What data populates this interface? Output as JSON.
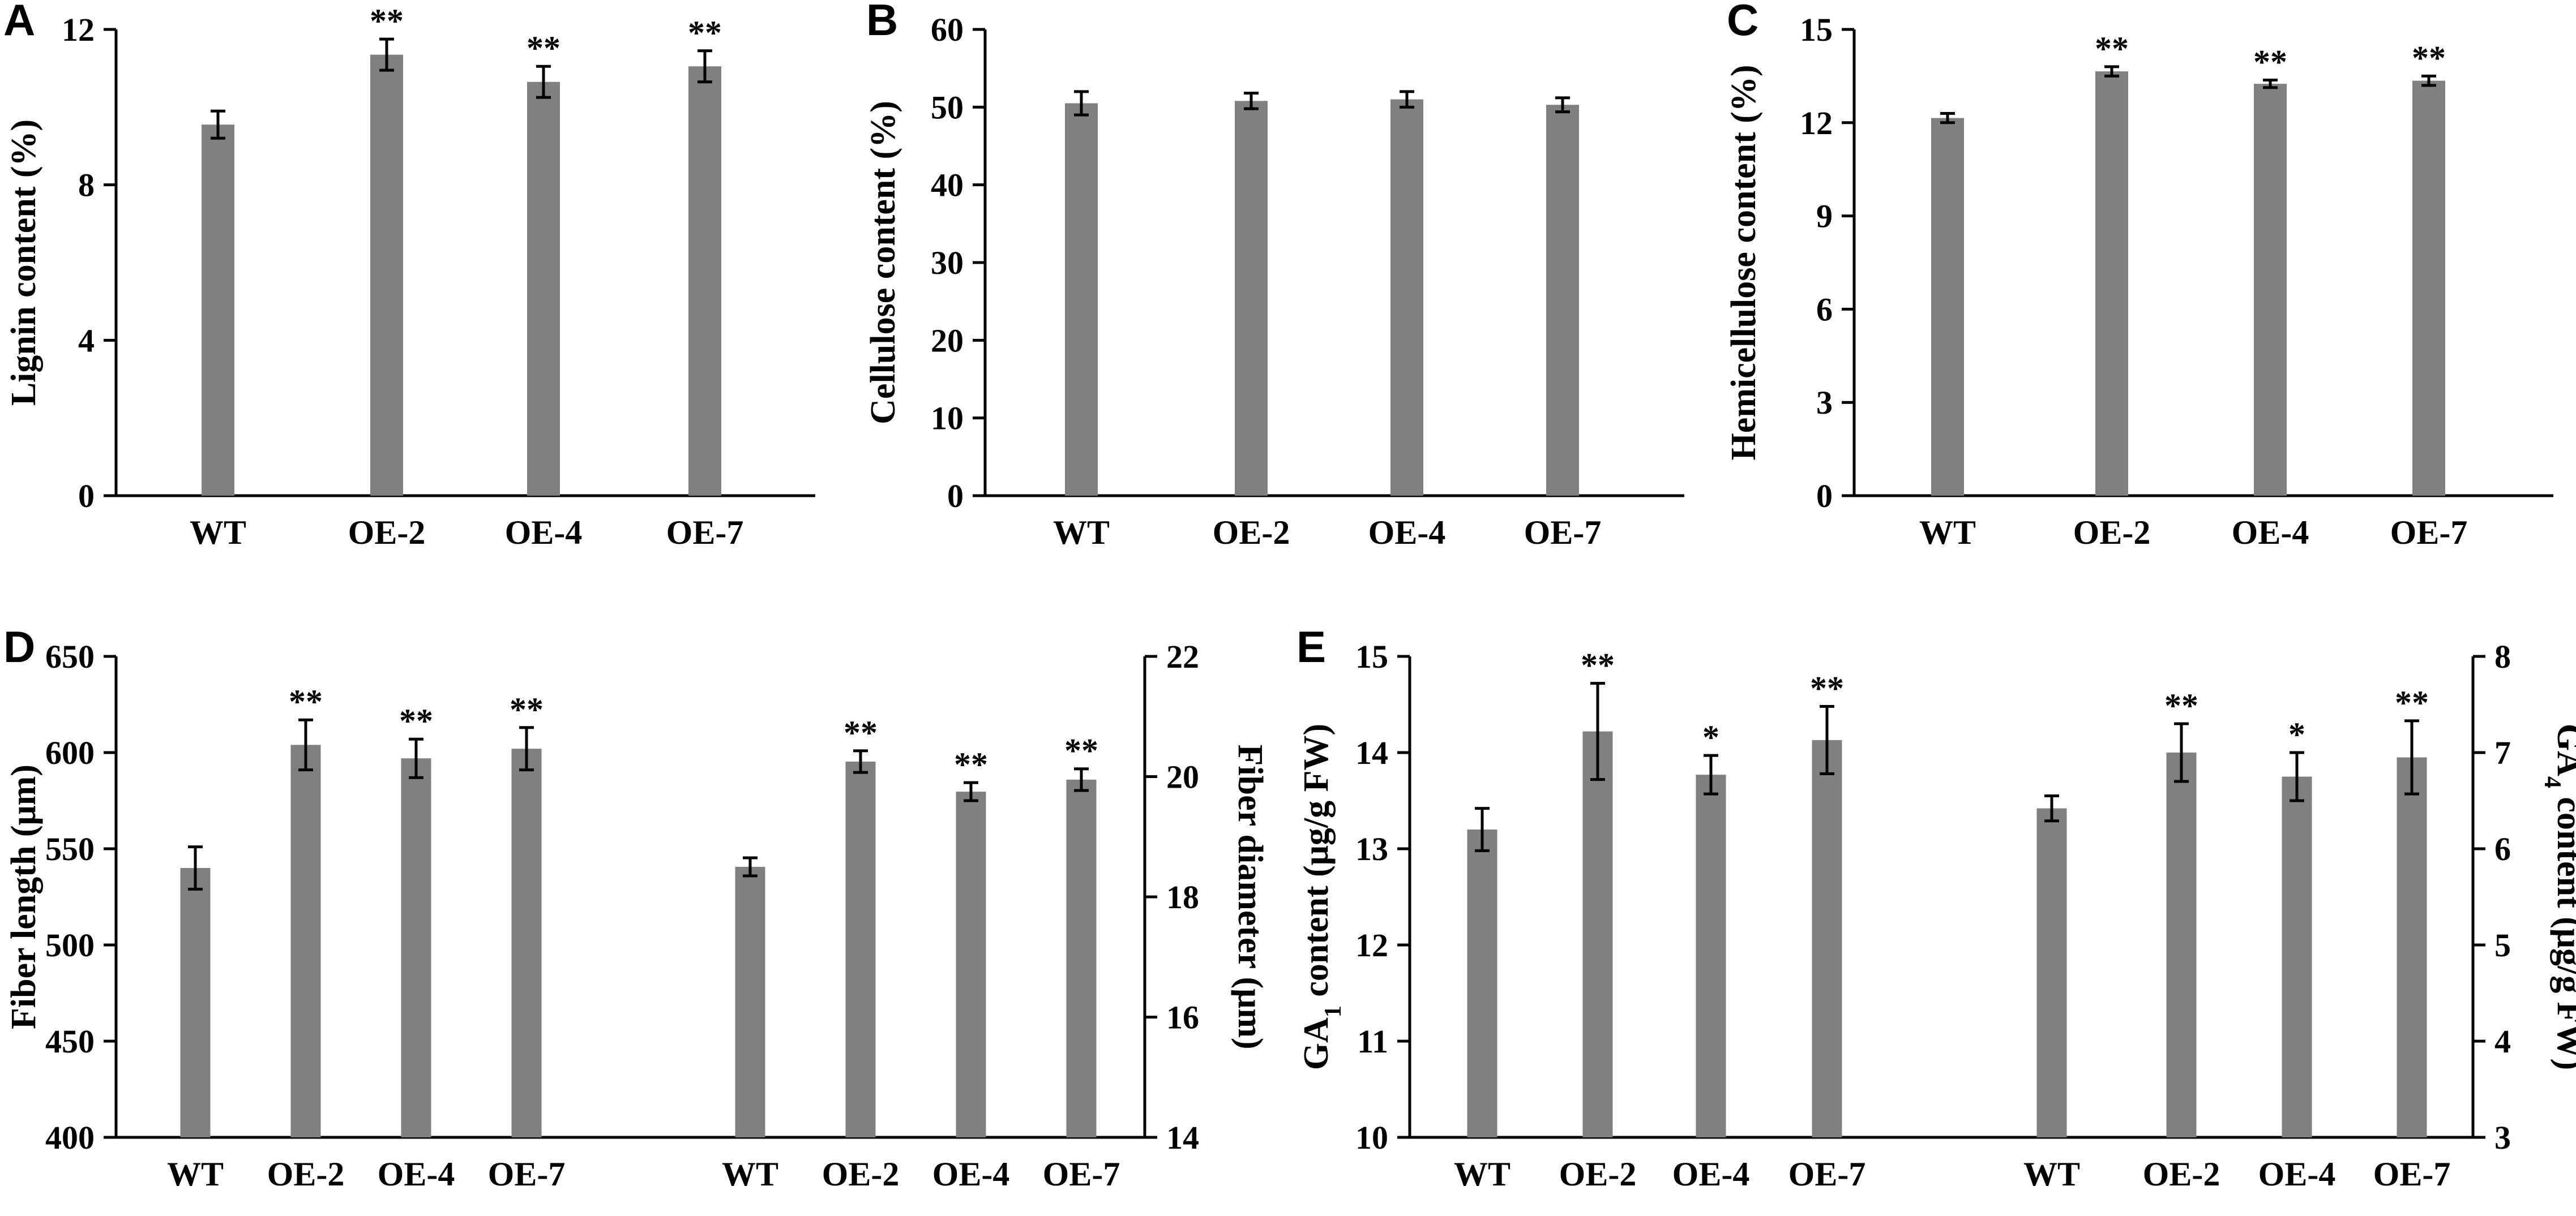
{
  "chart_data": [
    {
      "id": "A",
      "type": "bar",
      "panel_label": "A",
      "ylabel": "Lignin content (%)",
      "ylim": [
        0,
        12
      ],
      "yticks": [
        0,
        4,
        8,
        12
      ],
      "yticklabels": [
        "0",
        "4",
        "8",
        "12"
      ],
      "groups": [
        {
          "categories": [
            "WT",
            "OE-2",
            "OE-4",
            "OE-7"
          ],
          "axis": "left",
          "values": [
            9.55,
            11.35,
            10.65,
            11.05
          ],
          "errors": [
            0.35,
            0.4,
            0.4,
            0.4
          ],
          "significance": [
            "",
            "**",
            "**",
            "**"
          ]
        }
      ]
    },
    {
      "id": "B",
      "type": "bar",
      "panel_label": "B",
      "ylabel": "Cellulose content (%)",
      "ylim": [
        0,
        60
      ],
      "yticks": [
        0,
        10,
        20,
        30,
        40,
        50,
        60
      ],
      "yticklabels": [
        "0",
        "10",
        "20",
        "30",
        "40",
        "50",
        "60"
      ],
      "groups": [
        {
          "categories": [
            "WT",
            "OE-2",
            "OE-4",
            "OE-7"
          ],
          "axis": "left",
          "values": [
            50.5,
            50.8,
            51.0,
            50.3
          ],
          "errors": [
            1.5,
            1.0,
            1.0,
            0.9
          ],
          "significance": [
            "",
            "",
            "",
            ""
          ]
        }
      ]
    },
    {
      "id": "C",
      "type": "bar",
      "panel_label": "C",
      "ylabel": "Hemicellulose content (%)",
      "ylim": [
        0,
        15
      ],
      "yticks": [
        0,
        3,
        6,
        9,
        12,
        15
      ],
      "yticklabels": [
        "0",
        "3",
        "6",
        "9",
        "12",
        "15"
      ],
      "groups": [
        {
          "categories": [
            "WT",
            "OE-2",
            "OE-4",
            "OE-7"
          ],
          "axis": "left",
          "values": [
            12.15,
            13.65,
            13.25,
            13.35
          ],
          "errors": [
            0.15,
            0.15,
            0.12,
            0.15
          ],
          "significance": [
            "",
            "**",
            "**",
            "**"
          ]
        }
      ]
    },
    {
      "id": "D",
      "type": "bar",
      "panel_label": "D",
      "ylabel": "Fiber length (μm)",
      "ylim": [
        400,
        650
      ],
      "yticks": [
        400,
        450,
        500,
        550,
        600,
        650
      ],
      "yticklabels": [
        "400",
        "450",
        "500",
        "550",
        "600",
        "650"
      ],
      "y2label": "Fiber diameter (μm)",
      "y2lim": [
        14,
        22
      ],
      "y2ticks": [
        14,
        16,
        18,
        20,
        22
      ],
      "y2ticklabels": [
        "14",
        "16",
        "18",
        "20",
        "22"
      ],
      "groups": [
        {
          "categories": [
            "WT",
            "OE-2",
            "OE-4",
            "OE-7"
          ],
          "axis": "left",
          "values": [
            540,
            604,
            597,
            602
          ],
          "errors": [
            11,
            13,
            10,
            11
          ],
          "significance": [
            "",
            "**",
            "**",
            "**"
          ]
        },
        {
          "categories": [
            "WT",
            "OE-2",
            "OE-4",
            "OE-7"
          ],
          "axis": "right",
          "values": [
            18.5,
            20.25,
            19.75,
            19.95
          ],
          "errors": [
            0.15,
            0.18,
            0.15,
            0.18
          ],
          "significance": [
            "",
            "**",
            "**",
            "**"
          ]
        }
      ]
    },
    {
      "id": "E",
      "type": "bar",
      "panel_label": "E",
      "ylabel_parts": [
        "GA",
        "1",
        " content (μg/g FW)"
      ],
      "ylim": [
        10,
        15
      ],
      "yticks": [
        10,
        11,
        12,
        13,
        14,
        15
      ],
      "yticklabels": [
        "10",
        "11",
        "12",
        "13",
        "14",
        "15"
      ],
      "y2label_parts": [
        "GA",
        "4",
        " content (μg/g FW)"
      ],
      "y2lim": [
        3,
        8
      ],
      "y2ticks": [
        3,
        4,
        5,
        6,
        7,
        8
      ],
      "y2ticklabels": [
        "3",
        "4",
        "5",
        "6",
        "7",
        "8"
      ],
      "groups": [
        {
          "categories": [
            "WT",
            "OE-2",
            "OE-4",
            "OE-7"
          ],
          "axis": "left",
          "values": [
            13.2,
            14.22,
            13.77,
            14.13
          ],
          "errors": [
            0.22,
            0.5,
            0.2,
            0.35
          ],
          "significance": [
            "",
            "**",
            "*",
            "**"
          ]
        },
        {
          "categories": [
            "WT",
            "OE-2",
            "OE-4",
            "OE-7"
          ],
          "axis": "right",
          "values": [
            6.42,
            7.0,
            6.75,
            6.95
          ],
          "errors": [
            0.13,
            0.3,
            0.25,
            0.38
          ],
          "significance": [
            "",
            "**",
            "*",
            "**"
          ]
        }
      ]
    }
  ],
  "colors": {
    "bar": "#808080",
    "axis": "#000000",
    "background": "#ffffff"
  }
}
